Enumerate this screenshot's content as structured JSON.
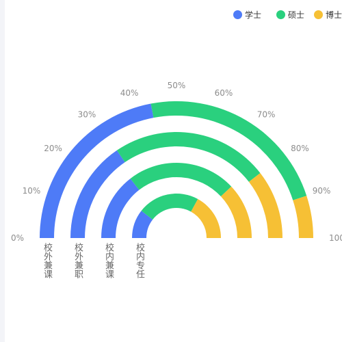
{
  "chart_data": {
    "type": "polar-bar-stacked",
    "angle_ticks": [
      "0%",
      "10%",
      "20%",
      "30%",
      "40%",
      "50%",
      "60%",
      "70%",
      "80%",
      "90%",
      "100%"
    ],
    "categories": [
      "校外兼课",
      "校外兼职",
      "校内兼课",
      "校内专任"
    ],
    "series": [
      {
        "name": "学士",
        "color": "#4e7bf7",
        "values": [
          44,
          31,
          29,
          21
        ]
      },
      {
        "name": "硕士",
        "color": "#2ad07e",
        "values": [
          46,
          48,
          47,
          45
        ]
      },
      {
        "name": "博士",
        "color": "#f6c035",
        "values": [
          10,
          21,
          24,
          34
        ]
      }
    ],
    "legend_position": "top-right"
  }
}
